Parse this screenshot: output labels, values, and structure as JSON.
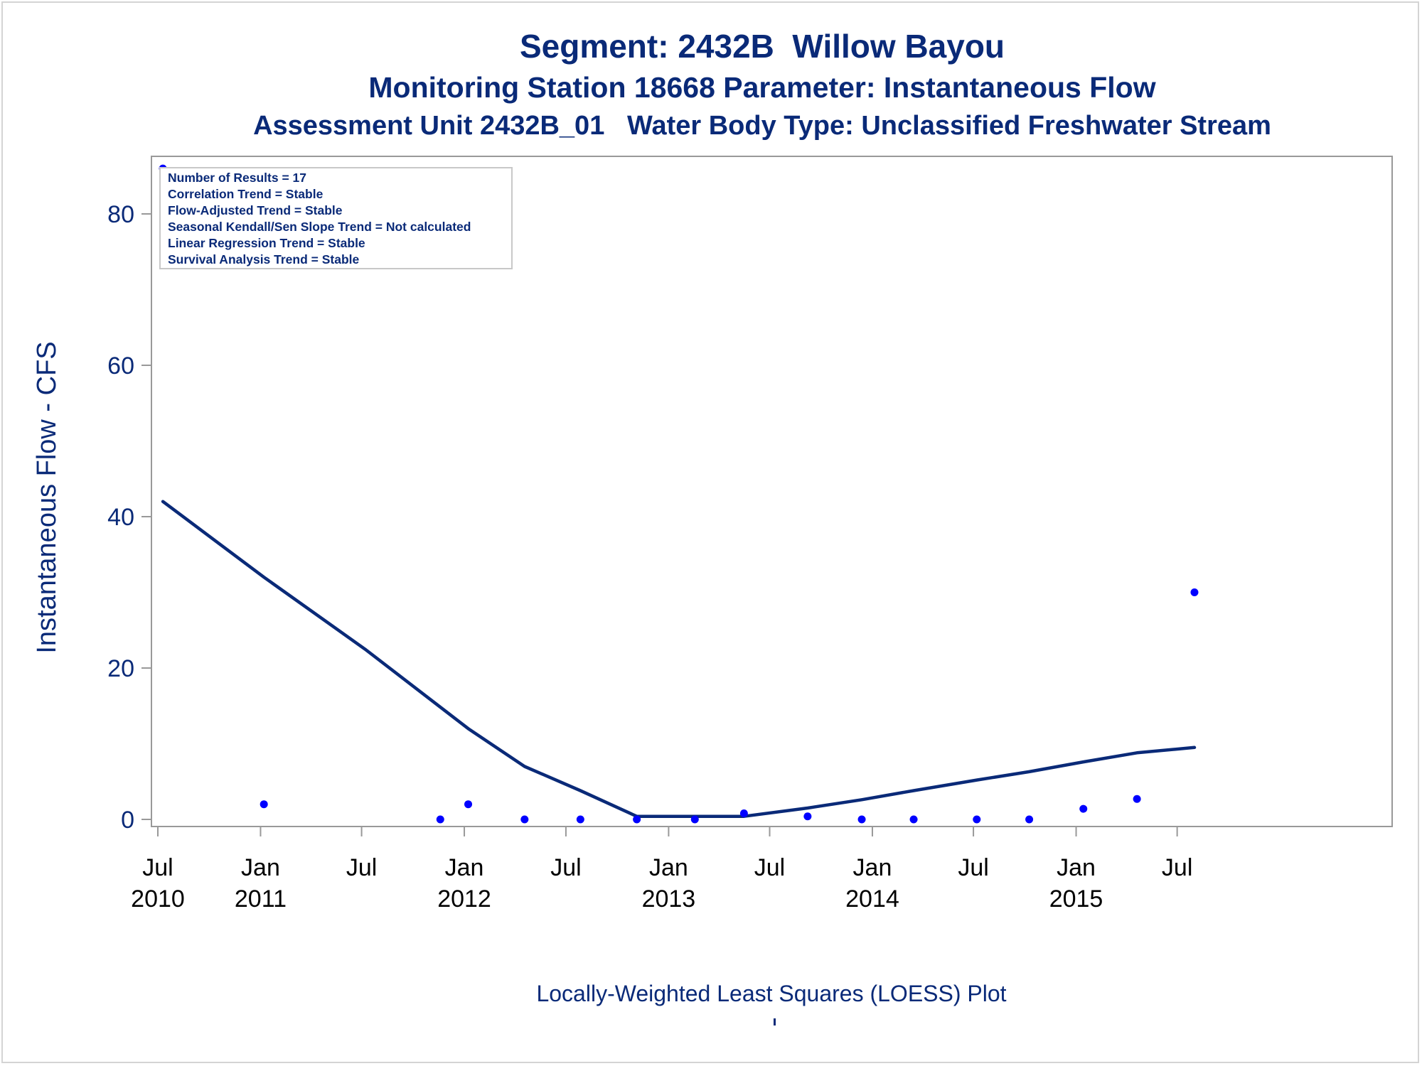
{
  "titles": {
    "line1": "Segment: 2432B  Willow Bayou",
    "line2": "Monitoring Station 18668 Parameter: Instantaneous Flow",
    "line3": "Assessment Unit 2432B_01   Water Body Type: Unclassified Freshwater Stream"
  },
  "footnote": "Locally-Weighted Least Squares (LOESS) Plot",
  "legend_box": {
    "lines": [
      "Number of Results = 17",
      "Correlation Trend = Stable",
      "Flow-Adjusted Trend = Stable",
      "Seasonal Kendall/Sen Slope Trend = Not calculated",
      "Linear Regression Trend = Stable",
      "Survival Analysis Trend = Stable"
    ]
  },
  "colors": {
    "text": "#0a2a78",
    "points": "#0000ff",
    "loess_line": "#0a2a78",
    "axis": "#999999"
  },
  "chart_data": {
    "type": "scatter",
    "ylabel": "Instantaneous Flow - CFS",
    "xlabel": "",
    "ylim": [
      0,
      87
    ],
    "yticks": [
      0,
      20,
      40,
      60,
      80
    ],
    "xlim": [
      "2010-07-01",
      "2016-07-01"
    ],
    "xticks": [
      {
        "date": "2010-07-01",
        "label1": "Jul",
        "label2": "2010"
      },
      {
        "date": "2011-01-01",
        "label1": "Jan",
        "label2": "2011"
      },
      {
        "date": "2011-07-01",
        "label1": "Jul",
        "label2": ""
      },
      {
        "date": "2012-01-01",
        "label1": "Jan",
        "label2": "2012"
      },
      {
        "date": "2012-07-01",
        "label1": "Jul",
        "label2": ""
      },
      {
        "date": "2013-01-01",
        "label1": "Jan",
        "label2": "2013"
      },
      {
        "date": "2013-07-01",
        "label1": "Jul",
        "label2": ""
      },
      {
        "date": "2014-01-01",
        "label1": "Jan",
        "label2": "2014"
      },
      {
        "date": "2014-07-01",
        "label1": "Jul",
        "label2": ""
      },
      {
        "date": "2015-01-01",
        "label1": "Jan",
        "label2": "2015"
      },
      {
        "date": "2015-07-01",
        "label1": "Jul",
        "label2": ""
      }
    ],
    "points": [
      {
        "date": "2010-07-10",
        "y": 86
      },
      {
        "date": "2011-01-07",
        "y": 2
      },
      {
        "date": "2011-11-19",
        "y": 0
      },
      {
        "date": "2012-01-08",
        "y": 2
      },
      {
        "date": "2012-04-18",
        "y": 0
      },
      {
        "date": "2012-07-27",
        "y": 0
      },
      {
        "date": "2012-11-05",
        "y": 0
      },
      {
        "date": "2013-02-17",
        "y": 0
      },
      {
        "date": "2013-05-16",
        "y": 0.8
      },
      {
        "date": "2013-09-07",
        "y": 0.4
      },
      {
        "date": "2013-12-13",
        "y": 0
      },
      {
        "date": "2014-03-16",
        "y": 0
      },
      {
        "date": "2014-07-07",
        "y": 0
      },
      {
        "date": "2014-10-09",
        "y": 0
      },
      {
        "date": "2015-01-14",
        "y": 1.4
      },
      {
        "date": "2015-04-20",
        "y": 2.7
      },
      {
        "date": "2015-08-01",
        "y": 30
      }
    ],
    "loess": {
      "name": "",
      "x": [
        "2010-07-10",
        "2011-01-07",
        "2011-07-07",
        "2012-01-08",
        "2012-04-18",
        "2012-07-27",
        "2012-11-05",
        "2013-02-17",
        "2013-05-16",
        "2013-09-07",
        "2013-12-13",
        "2014-03-16",
        "2014-07-07",
        "2014-10-09",
        "2015-01-14",
        "2015-04-20",
        "2015-08-01"
      ],
      "y": [
        42,
        32,
        22.5,
        12,
        7,
        3.8,
        0.4,
        0.4,
        0.4,
        1.5,
        2.6,
        3.8,
        5.2,
        6.3,
        7.6,
        8.8,
        9.5
      ]
    }
  }
}
